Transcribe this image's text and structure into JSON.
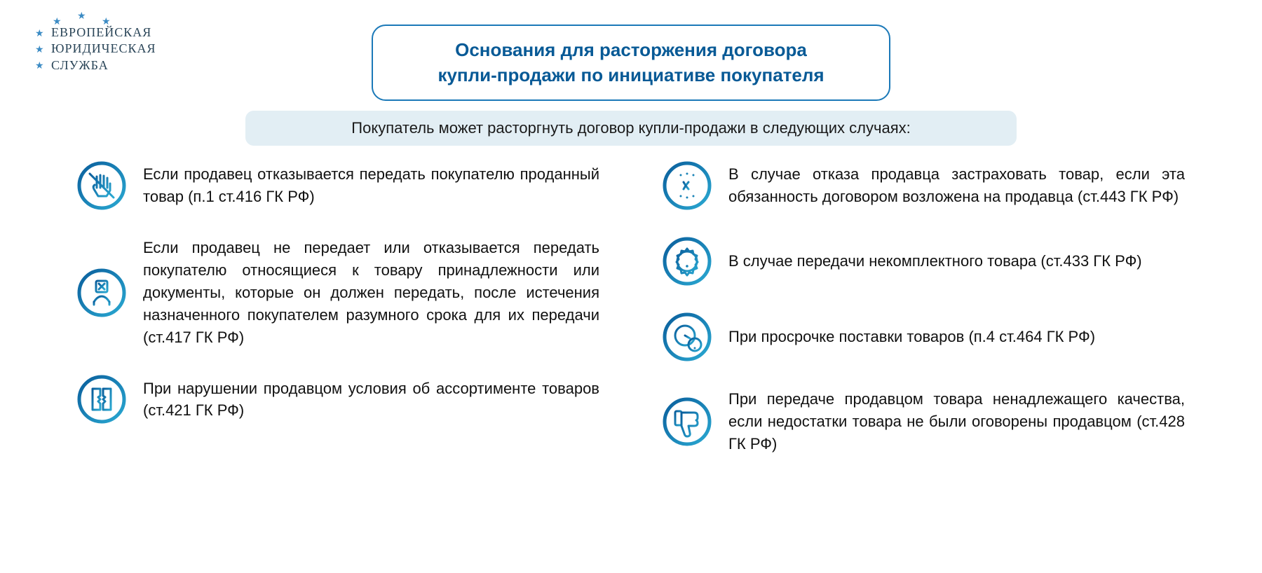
{
  "logo": {
    "line1": "ЕВРОПЕЙСКАЯ",
    "line2": "ЮРИДИЧЕСКАЯ",
    "line3": "СЛУЖБА",
    "star_color": "#3b8bc4",
    "text_color": "#2a4558"
  },
  "title": {
    "line1": "Основания для расторжения договора",
    "line2": "купли-продажи по инициативе покупателя",
    "border_color": "#1b79b8",
    "text_color": "#085a96",
    "font_size": 26
  },
  "subtitle": {
    "text": "Покупатель может расторгнуть договор купли-продажи в следующих случаях:",
    "bg_color": "#e2eef4",
    "font_size": 22
  },
  "icon_style": {
    "gradient_from": "#0a5e9c",
    "gradient_to": "#2aa9d2",
    "ring_fill": "#ffffff",
    "stroke_width": 3
  },
  "left_column": [
    {
      "icon": "stop-hand",
      "text": "Если продавец отказывается передать покупателю проданный товар (п.1 ст.416 ГК РФ)"
    },
    {
      "icon": "reject-doc",
      "text": "Если продавец не передает или отказывается передать покупателю относящиеся к товару принадлежности или документы, которые он должен передать, после истечения назначенного покупателем разумного срока для их передачи (ст.417 ГК РФ)"
    },
    {
      "icon": "torn-list",
      "text": "При нарушении продавцом условия об ассортименте товаров (ст.421 ГК РФ)"
    }
  ],
  "right_column": [
    {
      "icon": "broken-link",
      "text": "В случае отказа продавца застраховать товар, если эта обязанность договором возложена на продавца (ст.443 ГК РФ)"
    },
    {
      "icon": "gear-alert",
      "text": "В случае передачи некомплектного товара (ст.433 ГК РФ)"
    },
    {
      "icon": "clock-alert",
      "text": "При просрочке поставки товаров (п.4 ст.464 ГК РФ)"
    },
    {
      "icon": "thumb-down",
      "text": "При передаче продавцом товара ненадлежащего качества, если недостатки товара не были оговорены продавцом (ст.428 ГК РФ)"
    }
  ],
  "body_font_size": 22,
  "background_color": "#ffffff"
}
